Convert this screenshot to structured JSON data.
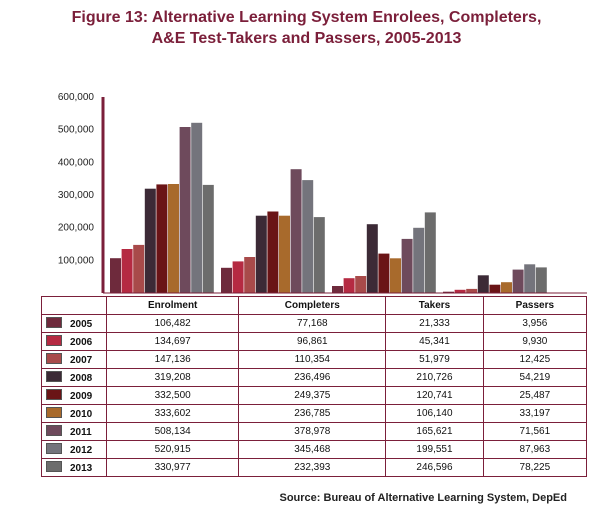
{
  "title_line1": "Figure 13:  Alternative Learning System Enrolees, Completers,",
  "title_line2": "A&E Test-Takers and Passers, 2005-2013",
  "source": "Source:  Bureau of Alternative Learning System, DepEd",
  "chart_data": {
    "type": "bar",
    "categories": [
      "Enrolment",
      "Completers",
      "Takers",
      "Passers"
    ],
    "yticks": [
      "100,000",
      "200,000",
      "300,000",
      "400,000",
      "500,000",
      "600,000"
    ],
    "ylim": [
      0,
      600000
    ],
    "grid": false,
    "series": [
      {
        "name": "2005",
        "color": "#6e2a3c",
        "values": [
          106482,
          77168,
          21333,
          3956
        ],
        "labels": [
          "106,482",
          "77,168",
          "21,333",
          "3,956"
        ]
      },
      {
        "name": "2006",
        "color": "#b52a42",
        "values": [
          134697,
          96861,
          45341,
          9930
        ],
        "labels": [
          "134,697",
          "96,861",
          "45,341",
          "9,930"
        ]
      },
      {
        "name": "2007",
        "color": "#a84a4a",
        "values": [
          147136,
          110354,
          51979,
          12425
        ],
        "labels": [
          "147,136",
          "110,354",
          "51,979",
          "12,425"
        ]
      },
      {
        "name": "2008",
        "color": "#3c2a36",
        "values": [
          319208,
          236496,
          210726,
          54219
        ],
        "labels": [
          "319,208",
          "236,496",
          "210,726",
          "54,219"
        ]
      },
      {
        "name": "2009",
        "color": "#6a1416",
        "values": [
          332500,
          249375,
          120741,
          25487
        ],
        "labels": [
          "332,500",
          "249,375",
          "120,741",
          "25,487"
        ]
      },
      {
        "name": "2010",
        "color": "#a86a2c",
        "values": [
          333602,
          236785,
          106140,
          33197
        ],
        "labels": [
          "333,602",
          "236,785",
          "106,140",
          "33,197"
        ]
      },
      {
        "name": "2011",
        "color": "#6e4a5c",
        "values": [
          508134,
          378978,
          165621,
          71561
        ],
        "labels": [
          "508,134",
          "378,978",
          "165,621",
          "71,561"
        ]
      },
      {
        "name": "2012",
        "color": "#74747c",
        "values": [
          520915,
          345468,
          199551,
          87963
        ],
        "labels": [
          "520,915",
          "345,468",
          "199,551",
          "87,963"
        ]
      },
      {
        "name": "2013",
        "color": "#6c6c6c",
        "values": [
          330977,
          232393,
          246596,
          78225
        ],
        "labels": [
          "330,977",
          "232,393",
          "246,596",
          "78,225"
        ]
      }
    ]
  }
}
